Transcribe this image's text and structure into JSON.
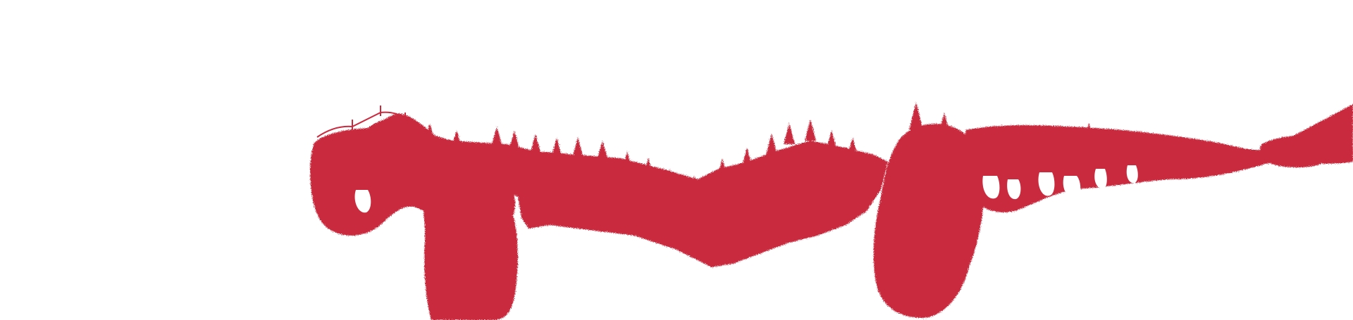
{
  "artwork": {
    "kind": "decorative-banner",
    "subject": "forest-treeline-brushstroke",
    "colors": {
      "background": "#ffffff",
      "ink": "#c92a3e"
    }
  }
}
